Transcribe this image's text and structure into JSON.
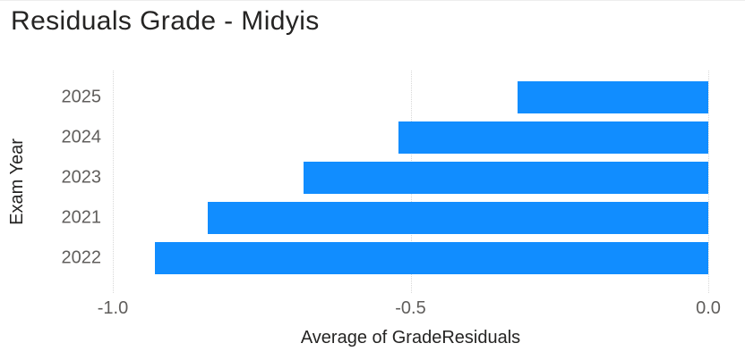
{
  "title": "Residuals Grade - Midyis",
  "colors": {
    "bar": "#118DFF",
    "title_text": "#252423",
    "axis_title_text": "#252423",
    "tick_text": "#605E5C",
    "gridline": "#D8D8D8",
    "background": "#FFFFFF"
  },
  "chart_data": {
    "type": "bar",
    "orientation": "horizontal",
    "title": "Residuals Grade - Midyis",
    "categories": [
      "2025",
      "2024",
      "2023",
      "2021",
      "2022"
    ],
    "values": [
      -0.32,
      -0.52,
      -0.68,
      -0.84,
      -0.93
    ],
    "xlabel": "Average of GradeResiduals",
    "ylabel": "Exam Year",
    "xlim": [
      -1.0,
      0.0
    ],
    "x_tick_labels": [
      "-1.0",
      "-0.5",
      "0.0"
    ],
    "x_tick_values": [
      -1.0,
      -0.5,
      0.0
    ],
    "grid": "dotted-vertical",
    "legend": "none"
  }
}
